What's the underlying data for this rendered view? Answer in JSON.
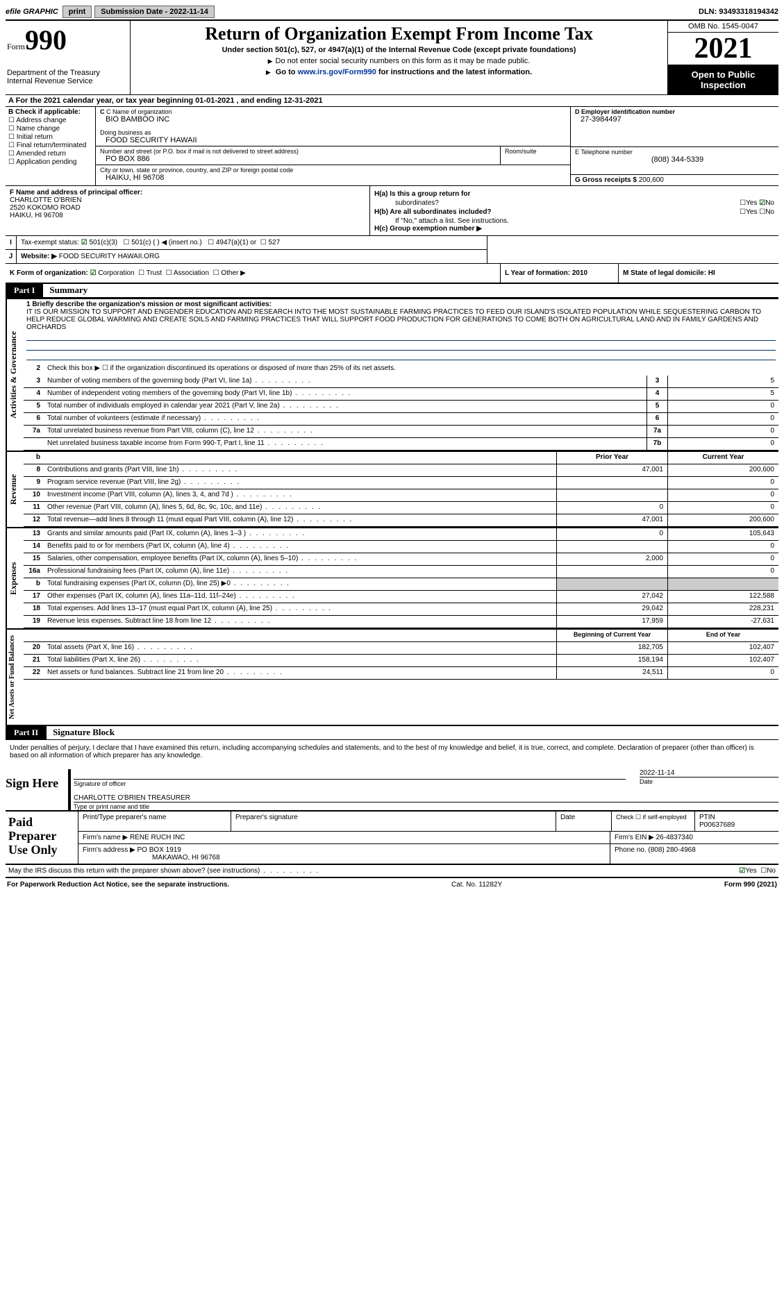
{
  "topbar": {
    "efile_label": "efile GRAPHIC",
    "print_btn": "print",
    "submission_label": "Submission Date - 2022-11-14",
    "dln": "DLN: 93493318194342"
  },
  "header": {
    "form_word": "Form",
    "form_num": "990",
    "dept": "Department of the Treasury",
    "irs": "Internal Revenue Service",
    "title": "Return of Organization Exempt From Income Tax",
    "subtitle": "Under section 501(c), 527, or 4947(a)(1) of the Internal Revenue Code (except private foundations)",
    "note1": "Do not enter social security numbers on this form as it may be made public.",
    "note2_pre": "Go to ",
    "note2_link": "www.irs.gov/Form990",
    "note2_post": " for instructions and the latest information.",
    "omb": "OMB No. 1545-0047",
    "year": "2021",
    "open": "Open to Public Inspection"
  },
  "row_a": "A For the 2021 calendar year, or tax year beginning 01-01-2021    , and ending 12-31-2021",
  "col_b": {
    "header": "B Check if applicable:",
    "items": [
      "Address change",
      "Name change",
      "Initial return",
      "Final return/terminated",
      "Amended return",
      "Application pending"
    ]
  },
  "col_c": {
    "name_label": "C Name of organization",
    "name": "BIO BAMBOO INC",
    "dba_label": "Doing business as",
    "dba": "FOOD SECURITY HAWAII",
    "street_label": "Number and street (or P.O. box if mail is not delivered to street address)",
    "street": "PO BOX 886",
    "room_label": "Room/suite",
    "city_label": "City or town, state or province, country, and ZIP or foreign postal code",
    "city": "HAIKU, HI  96708"
  },
  "col_d": {
    "ein_label": "D Employer identification number",
    "ein": "27-3984497",
    "phone_label": "E Telephone number",
    "phone": "(808) 344-5339",
    "gross_label": "G Gross receipts $",
    "gross": "200,600"
  },
  "col_f": {
    "label": "F  Name and address of principal officer:",
    "name": "CHARLOTTE O'BRIEN",
    "addr1": "2520 KOKOMO ROAD",
    "addr2": "HAIKU, HI  96708"
  },
  "col_h": {
    "ha_label": "H(a)  Is this a group return for",
    "ha_sub": "subordinates?",
    "hb_label": "H(b)  Are all subordinates included?",
    "hb_note": "If \"No,\" attach a list. See instructions.",
    "hc_label": "H(c)  Group exemption number ▶"
  },
  "row_i": {
    "label": "Tax-exempt status:",
    "opts": [
      "501(c)(3)",
      "501(c) (  ) ◀ (insert no.)",
      "4947(a)(1) or",
      "527"
    ]
  },
  "row_j": {
    "label": "Website: ▶",
    "val": "FOOD SECURITY HAWAII.ORG"
  },
  "row_k": {
    "label": "K Form of organization:",
    "opts": [
      "Corporation",
      "Trust",
      "Association",
      "Other ▶"
    ]
  },
  "row_l": {
    "label": "L Year of formation: 2010"
  },
  "row_m": {
    "label": "M State of legal domicile: HI"
  },
  "part1": {
    "header": "Part I",
    "title": "Summary",
    "mission_label": "1  Briefly describe the organization's mission or most significant activities:",
    "mission": "IT IS OUR MISSION TO SUPPORT AND ENGENDER EDUCATION AND RESEARCH INTO THE MOST SUSTAINABLE FARMING PRACTICES TO FEED OUR ISLAND'S ISOLATED POPULATION WHILE SEQUESTERING CARBON TO HELP REDUCE GLOBAL WARMING AND CREATE SOILS AND FARMING PRACTICES THAT WILL SUPPORT FOOD PRODUCTION FOR GENERATIONS TO COME BOTH ON AGRICULTURAL LAND AND IN FAMILY GARDENS AND ORCHARDS",
    "sections": {
      "activities": {
        "label": "Activities & Governance",
        "lines": [
          {
            "n": "2",
            "d": "Check this box ▶ ☐  if the organization discontinued its operations or disposed of more than 25% of its net assets.",
            "box": "",
            "v": ""
          },
          {
            "n": "3",
            "d": "Number of voting members of the governing body (Part VI, line 1a)",
            "box": "3",
            "v": "5"
          },
          {
            "n": "4",
            "d": "Number of independent voting members of the governing body (Part VI, line 1b)",
            "box": "4",
            "v": "5"
          },
          {
            "n": "5",
            "d": "Total number of individuals employed in calendar year 2021 (Part V, line 2a)",
            "box": "5",
            "v": "0"
          },
          {
            "n": "6",
            "d": "Total number of volunteers (estimate if necessary)",
            "box": "6",
            "v": "0"
          },
          {
            "n": "7a",
            "d": "Total unrelated business revenue from Part VIII, column (C), line 12",
            "box": "7a",
            "v": "0"
          },
          {
            "n": "",
            "d": "Net unrelated business taxable income from Form 990-T, Part I, line 11",
            "box": "7b",
            "v": "0"
          }
        ]
      },
      "revenue": {
        "label": "Revenue",
        "header": {
          "py": "Prior Year",
          "cy": "Current Year"
        },
        "lines": [
          {
            "n": "8",
            "d": "Contributions and grants (Part VIII, line 1h)",
            "py": "47,001",
            "cy": "200,600"
          },
          {
            "n": "9",
            "d": "Program service revenue (Part VIII, line 2g)",
            "py": "",
            "cy": "0"
          },
          {
            "n": "10",
            "d": "Investment income (Part VIII, column (A), lines 3, 4, and 7d )",
            "py": "",
            "cy": "0"
          },
          {
            "n": "11",
            "d": "Other revenue (Part VIII, column (A), lines 5, 6d, 8c, 9c, 10c, and 11e)",
            "py": "0",
            "cy": "0"
          },
          {
            "n": "12",
            "d": "Total revenue—add lines 8 through 11 (must equal Part VIII, column (A), line 12)",
            "py": "47,001",
            "cy": "200,600"
          }
        ]
      },
      "expenses": {
        "label": "Expenses",
        "lines": [
          {
            "n": "13",
            "d": "Grants and similar amounts paid (Part IX, column (A), lines 1–3 )",
            "py": "0",
            "cy": "105,643"
          },
          {
            "n": "14",
            "d": "Benefits paid to or for members (Part IX, column (A), line 4)",
            "py": "",
            "cy": "0"
          },
          {
            "n": "15",
            "d": "Salaries, other compensation, employee benefits (Part IX, column (A), lines 5–10)",
            "py": "2,000",
            "cy": "0"
          },
          {
            "n": "16a",
            "d": "Professional fundraising fees (Part IX, column (A), line 11e)",
            "py": "",
            "cy": "0"
          },
          {
            "n": "b",
            "d": "Total fundraising expenses (Part IX, column (D), line 25) ▶0",
            "py": "shade",
            "cy": "shade"
          },
          {
            "n": "17",
            "d": "Other expenses (Part IX, column (A), lines 11a–11d, 11f–24e)",
            "py": "27,042",
            "cy": "122,588"
          },
          {
            "n": "18",
            "d": "Total expenses. Add lines 13–17 (must equal Part IX, column (A), line 25)",
            "py": "29,042",
            "cy": "228,231"
          },
          {
            "n": "19",
            "d": "Revenue less expenses. Subtract line 18 from line 12",
            "py": "17,959",
            "cy": "-27,631"
          }
        ]
      },
      "netassets": {
        "label": "Net Assets or Fund Balances",
        "header": {
          "py": "Beginning of Current Year",
          "cy": "End of Year"
        },
        "lines": [
          {
            "n": "20",
            "d": "Total assets (Part X, line 16)",
            "py": "182,705",
            "cy": "102,407"
          },
          {
            "n": "21",
            "d": "Total liabilities (Part X, line 26)",
            "py": "158,194",
            "cy": "102,407"
          },
          {
            "n": "22",
            "d": "Net assets or fund balances. Subtract line 21 from line 20",
            "py": "24,511",
            "cy": "0"
          }
        ]
      }
    }
  },
  "part2": {
    "header": "Part II",
    "title": "Signature Block",
    "penalty": "Under penalties of perjury, I declare that I have examined this return, including accompanying schedules and statements, and to the best of my knowledge and belief, it is true, correct, and complete. Declaration of preparer (other than officer) is based on all information of which preparer has any knowledge.",
    "sign_here": "Sign Here",
    "sig_officer": "Signature of officer",
    "sig_date": "2022-11-14",
    "date_label": "Date",
    "officer_name": "CHARLOTTE O'BRIEN  TREASURER",
    "type_label": "Type or print name and title",
    "paid": "Paid Preparer Use Only",
    "prep_name_label": "Print/Type preparer's name",
    "prep_sig_label": "Preparer's signature",
    "prep_date_label": "Date",
    "check_se": "Check ☐ if self-employed",
    "ptin_label": "PTIN",
    "ptin": "P00637689",
    "firm_name_label": "Firm's name    ▶",
    "firm_name": "RENE RUCH INC",
    "firm_ein_label": "Firm's EIN ▶",
    "firm_ein": "26-4837340",
    "firm_addr_label": "Firm's address ▶",
    "firm_addr1": "PO BOX 1919",
    "firm_addr2": "MAKAWAO, HI  96768",
    "phone_label": "Phone no.",
    "phone": "(808) 280-4968",
    "discuss": "May the IRS discuss this return with the preparer shown above? (see instructions)"
  },
  "footer": {
    "left": "For Paperwork Reduction Act Notice, see the separate instructions.",
    "center": "Cat. No. 11282Y",
    "right": "Form 990 (2021)"
  },
  "yn": {
    "yes": "Yes",
    "no": "No"
  }
}
